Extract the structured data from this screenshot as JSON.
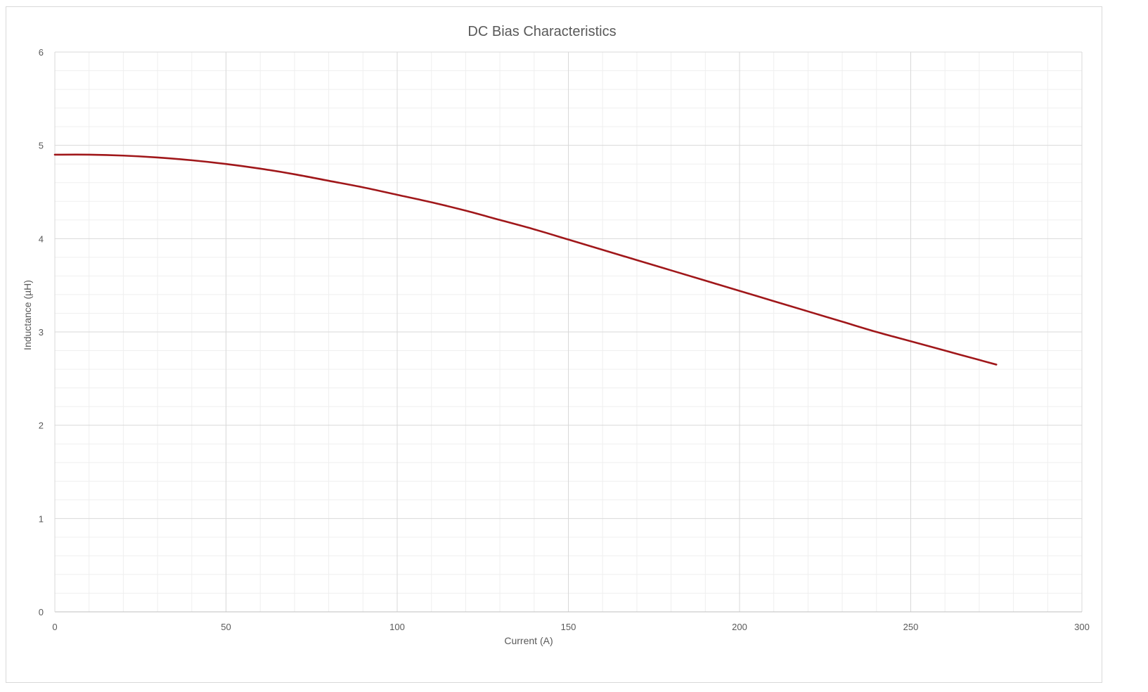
{
  "chart_data": {
    "type": "line",
    "title": "DC Bias Characteristics",
    "xlabel": "Current (A)",
    "ylabel": "Inductance (µH)",
    "xlim": [
      0,
      300
    ],
    "ylim": [
      0,
      6
    ],
    "x_ticks": [
      0,
      50,
      100,
      150,
      200,
      250,
      300
    ],
    "y_ticks": [
      0,
      1,
      2,
      3,
      4,
      5,
      6
    ],
    "x_minor_step": 10,
    "y_minor_step": 0.2,
    "grid": true,
    "legend": "none",
    "series": [
      {
        "color": "#a0171a",
        "x": [
          0,
          10,
          20,
          30,
          40,
          50,
          60,
          70,
          80,
          90,
          100,
          110,
          120,
          130,
          140,
          150,
          160,
          170,
          180,
          190,
          200,
          210,
          220,
          230,
          240,
          250,
          260,
          270,
          275
        ],
        "y": [
          4.9,
          4.9,
          4.89,
          4.87,
          4.84,
          4.8,
          4.75,
          4.69,
          4.62,
          4.55,
          4.47,
          4.39,
          4.3,
          4.2,
          4.1,
          3.99,
          3.88,
          3.77,
          3.66,
          3.55,
          3.44,
          3.33,
          3.22,
          3.11,
          3.0,
          2.9,
          2.8,
          2.7,
          2.65
        ]
      }
    ]
  }
}
